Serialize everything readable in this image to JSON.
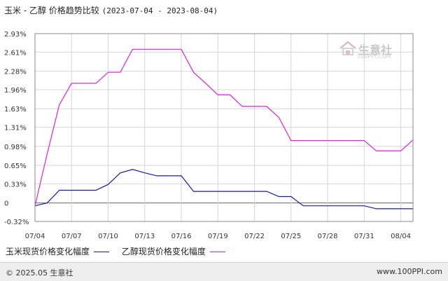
{
  "header": {
    "title": "玉米 - 乙醇 价格趋势比较",
    "date_range": "(2023-07-04 - 2023-08-04)"
  },
  "watermark": {
    "text": "生意社",
    "sub": "100PPI.COM"
  },
  "footer": {
    "copyright": "© 2025.05 生意社",
    "site": "www.100PPI.com"
  },
  "chart_data": {
    "type": "line",
    "title": "玉米 - 乙醇 价格趋势比较",
    "ylim": [
      -0.32,
      2.93
    ],
    "y_ticks": [
      "2.93%",
      "2.61%",
      "2.28%",
      "1.96%",
      "1.63%",
      "1.31%",
      "0.98%",
      "0.65%",
      "0.33%",
      "0",
      "-0.32%"
    ],
    "y_tick_values": [
      2.93,
      2.61,
      2.28,
      1.96,
      1.63,
      1.31,
      0.98,
      0.65,
      0.33,
      0,
      -0.32
    ],
    "x_ticks": [
      "07/04",
      "07/07",
      "07/10",
      "07/13",
      "07/16",
      "07/19",
      "07/22",
      "07/25",
      "07/28",
      "07/31",
      "08/04"
    ],
    "x_tick_days": [
      0,
      3,
      6,
      9,
      12,
      15,
      18,
      21,
      24,
      27,
      30
    ],
    "grid": true,
    "legend_position": "bottom-left",
    "series": [
      {
        "name": "玉米现货价格变化幅度",
        "color": "#1a1aa6",
        "x": [
          0,
          1,
          2,
          3,
          4,
          5,
          6,
          7,
          8,
          9,
          10,
          11,
          12,
          13,
          14,
          15,
          16,
          17,
          18,
          19,
          20,
          21,
          22,
          23,
          24,
          25,
          26,
          27,
          28,
          29,
          30,
          31
        ],
        "values": [
          -0.05,
          0,
          0.22,
          0.22,
          0.22,
          0.22,
          0.32,
          0.52,
          0.58,
          0.52,
          0.47,
          0.47,
          0.47,
          0.2,
          0.2,
          0.2,
          0.2,
          0.2,
          0.2,
          0.2,
          0.11,
          0.11,
          -0.05,
          -0.05,
          -0.05,
          -0.05,
          -0.05,
          -0.05,
          -0.1,
          -0.1,
          -0.1,
          -0.1
        ]
      },
      {
        "name": "乙醇现货价格变化幅度",
        "color": "#e020e0",
        "x": [
          0,
          1,
          2,
          3,
          4,
          5,
          6,
          7,
          8,
          9,
          10,
          11,
          12,
          13,
          14,
          15,
          16,
          17,
          18,
          19,
          20,
          21,
          22,
          23,
          24,
          25,
          26,
          27,
          28,
          29,
          30,
          31
        ],
        "values": [
          -0.05,
          0.85,
          1.7,
          2.07,
          2.07,
          2.07,
          2.26,
          2.26,
          2.66,
          2.66,
          2.66,
          2.66,
          2.66,
          2.26,
          2.07,
          1.87,
          1.87,
          1.67,
          1.67,
          1.67,
          1.48,
          1.08,
          1.08,
          1.08,
          1.08,
          1.08,
          1.08,
          1.08,
          0.9,
          0.9,
          0.9,
          1.09
        ]
      }
    ]
  }
}
